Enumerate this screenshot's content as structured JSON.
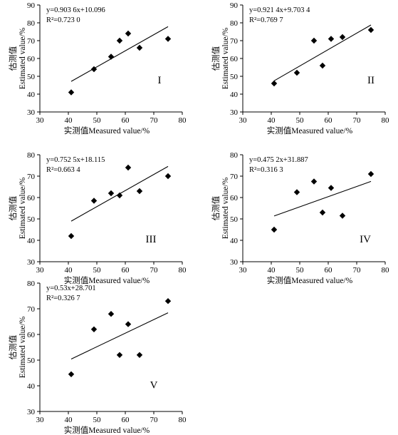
{
  "chart_data": [
    {
      "type": "scatter",
      "panel_label": "I",
      "equation": "y=0.903 6x+10.096",
      "r2": "R²=0.723 0",
      "xlabel": "实测值Measured value/%",
      "ylabel_cn": "估测值",
      "ylabel_en": "Estimated value/%",
      "xlim": [
        30,
        80
      ],
      "ylim": [
        30,
        90
      ],
      "xticks": [
        30,
        40,
        50,
        60,
        70,
        80
      ],
      "yticks": [
        30,
        40,
        50,
        60,
        70,
        80,
        90
      ],
      "points": [
        [
          41,
          41
        ],
        [
          49,
          54
        ],
        [
          55,
          61
        ],
        [
          58,
          70
        ],
        [
          61,
          74
        ],
        [
          65,
          66
        ],
        [
          75,
          71
        ]
      ],
      "fit": {
        "slope": 0.9036,
        "intercept": 10.096,
        "x_range": [
          41,
          75
        ]
      }
    },
    {
      "type": "scatter",
      "panel_label": "II",
      "equation": "y=0.921 4x+9.703 4",
      "r2": "R²=0.769 7",
      "xlabel": "实测值Measured value/%",
      "ylabel_cn": "估测值",
      "ylabel_en": "Estimated value/%",
      "xlim": [
        30,
        80
      ],
      "ylim": [
        30,
        90
      ],
      "xticks": [
        30,
        40,
        50,
        60,
        70,
        80
      ],
      "yticks": [
        30,
        40,
        50,
        60,
        70,
        80,
        90
      ],
      "points": [
        [
          41,
          46
        ],
        [
          49,
          52
        ],
        [
          55,
          70
        ],
        [
          58,
          56
        ],
        [
          61,
          71
        ],
        [
          65,
          72
        ],
        [
          75,
          76
        ]
      ],
      "fit": {
        "slope": 0.9214,
        "intercept": 9.7034,
        "x_range": [
          41,
          75
        ]
      }
    },
    {
      "type": "scatter",
      "panel_label": "III",
      "equation": "y=0.752 5x+18.115",
      "r2": "R²=0.663 4",
      "xlabel": "实测值Measured value/%",
      "ylabel_cn": "估测值",
      "ylabel_en": "Estimated value/%",
      "xlim": [
        30,
        80
      ],
      "ylim": [
        30,
        80
      ],
      "xticks": [
        30,
        40,
        50,
        60,
        70,
        80
      ],
      "yticks": [
        30,
        40,
        50,
        60,
        70,
        80
      ],
      "points": [
        [
          41,
          42
        ],
        [
          49,
          58.5
        ],
        [
          55,
          62
        ],
        [
          58,
          61
        ],
        [
          61,
          74
        ],
        [
          65,
          63
        ],
        [
          75,
          70
        ]
      ],
      "fit": {
        "slope": 0.7525,
        "intercept": 18.115,
        "x_range": [
          41,
          75
        ]
      }
    },
    {
      "type": "scatter",
      "panel_label": "IV",
      "equation": "y=0.475 2x+31.887",
      "r2": "R²=0.316 3",
      "xlabel": "实测值Measured value/%",
      "ylabel_cn": "估测值",
      "ylabel_en": "Estimated value/%",
      "xlim": [
        30,
        80
      ],
      "ylim": [
        30,
        80
      ],
      "xticks": [
        30,
        40,
        50,
        60,
        70,
        80
      ],
      "yticks": [
        30,
        40,
        50,
        60,
        70,
        80
      ],
      "points": [
        [
          41,
          45
        ],
        [
          49,
          62.5
        ],
        [
          55,
          67.5
        ],
        [
          58,
          53
        ],
        [
          61,
          64.5
        ],
        [
          65,
          51.5
        ],
        [
          75,
          71
        ]
      ],
      "fit": {
        "slope": 0.4752,
        "intercept": 31.887,
        "x_range": [
          41,
          75
        ]
      }
    },
    {
      "type": "scatter",
      "panel_label": "V",
      "equation": "y=0.53x+28.701",
      "r2": "R²=0.326 7",
      "xlabel": "实测值Measured value/%",
      "ylabel_cn": "估测值",
      "ylabel_en": "Estimated value/%",
      "xlim": [
        30,
        80
      ],
      "ylim": [
        30,
        80
      ],
      "xticks": [
        30,
        40,
        50,
        60,
        70,
        80
      ],
      "yticks": [
        30,
        40,
        50,
        60,
        70,
        80
      ],
      "points": [
        [
          41,
          44.5
        ],
        [
          49,
          62
        ],
        [
          55,
          68
        ],
        [
          58,
          52
        ],
        [
          61,
          64
        ],
        [
          65,
          52
        ],
        [
          75,
          73
        ]
      ],
      "fit": {
        "slope": 0.53,
        "intercept": 28.701,
        "x_range": [
          41,
          75
        ]
      }
    }
  ]
}
